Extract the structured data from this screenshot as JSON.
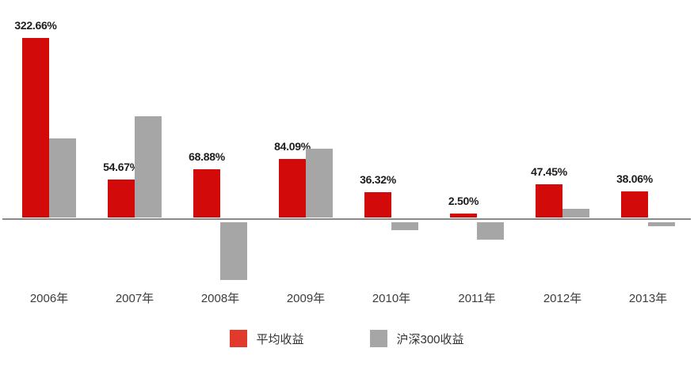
{
  "chart_data": {
    "type": "bar",
    "title": "",
    "categories": [
      "2006年",
      "2007年",
      "2008年",
      "2009年",
      "2010年",
      "2011年",
      "2012年",
      "2013年"
    ],
    "series": [
      {
        "name": "平均收益",
        "color": "#d20a0a",
        "legend_color": "#e2392d",
        "values": [
          322.66,
          54.67,
          68.88,
          84.09,
          36.32,
          2.5,
          47.45,
          38.06
        ],
        "labels": [
          "322.66%",
          "54.67%",
          "68.88%",
          "84.09%",
          "36.32%",
          "2.50%",
          "47.45%",
          "38.06%"
        ]
      },
      {
        "name": "沪深300收益",
        "color": "#a6a6a6",
        "values": [
          114,
          146,
          -83,
          99,
          -11,
          -25,
          12,
          -6
        ],
        "values_estimated": true
      }
    ],
    "value_labels_shown_for": "平均收益",
    "baseline": 0,
    "ylim": [
      -90,
      325
    ],
    "grid": false,
    "legend_position": "bottom",
    "axis_line_color": "#8a8a8a",
    "value_label_color": "#1c1c1c",
    "x_label_color": "#3d3d3d"
  }
}
